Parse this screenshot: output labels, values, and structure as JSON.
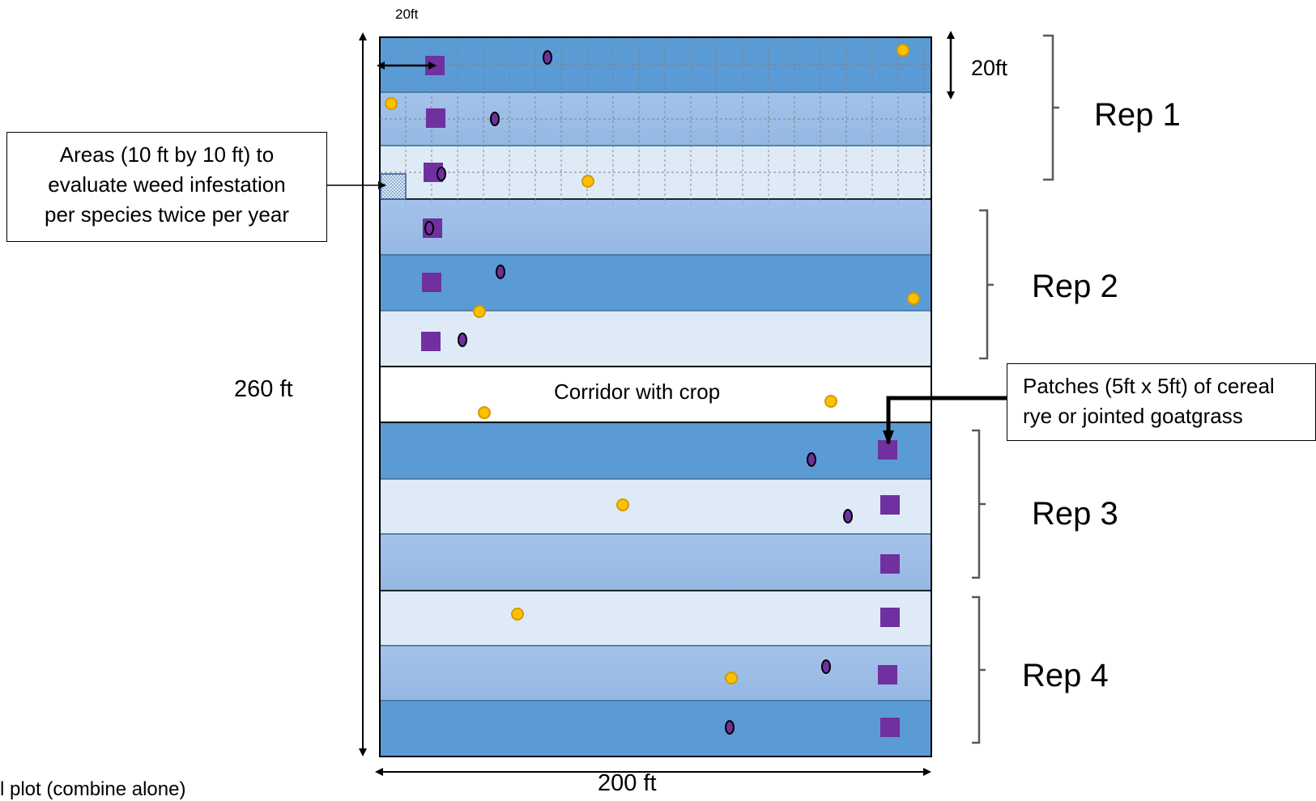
{
  "labels": {
    "top_20ft_small": "20ft",
    "row_height": "20ft",
    "total_length": "260 ft",
    "total_width": "200 ft",
    "corridor": "Corridor with crop",
    "footer_partial": "l plot (combine alone)"
  },
  "callouts": {
    "areas": {
      "line1": "Areas (10 ft by 10 ft) to",
      "line2": "evaluate weed infestation",
      "line3": "per species twice per year"
    },
    "patches": {
      "line1": "Patches (5ft x 5ft) of cereal",
      "line2": "rye or jointed goatgrass"
    }
  },
  "reps": [
    {
      "label": "Rep 1",
      "strip_shades": [
        "dark",
        "medium",
        "light"
      ]
    },
    {
      "label": "Rep 2",
      "strip_shades": [
        "medium",
        "dark",
        "light"
      ]
    },
    {
      "label": "Rep 3",
      "strip_shades": [
        "dark",
        "light",
        "medium"
      ]
    },
    {
      "label": "Rep 4",
      "strip_shades": [
        "light",
        "medium",
        "dark"
      ]
    }
  ],
  "colors": {
    "dark_strip": "#5b9bd5",
    "medium_strip_top": "#9ebde6",
    "medium_strip_bottom": "#a9c6eb",
    "light_strip": "#deebf7",
    "strip_border": "#41719c",
    "patch_square": "#7030a0",
    "ellipse_marker": "#7030a0",
    "circle_marker": "#ffc000",
    "circle_marker_border": "#d29b00",
    "grid_line": "#7f7f7f",
    "text": "#000000"
  },
  "legend_symbols": [
    "purple-square",
    "purple-ellipse",
    "yellow-circle"
  ]
}
